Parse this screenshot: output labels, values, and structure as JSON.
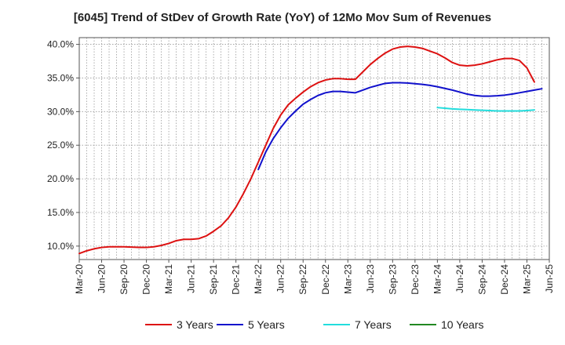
{
  "chart_data": {
    "type": "line",
    "title": "[6045]  Trend of StDev of Growth Rate (YoY) of 12Mo Mov Sum of Revenues",
    "xlabel": "",
    "ylabel": "",
    "ylim": [
      8.0,
      41.0
    ],
    "yticks": [
      10,
      15,
      20,
      25,
      30,
      35,
      40
    ],
    "ytick_labels": [
      "10.0%",
      "15.0%",
      "20.0%",
      "25.0%",
      "30.0%",
      "35.0%",
      "40.0%"
    ],
    "x_start": "Mar-20",
    "x_end": "Jun-25",
    "x_tick_labels": [
      "Mar-20",
      "Jun-20",
      "Sep-20",
      "Dec-20",
      "Mar-21",
      "Jun-21",
      "Sep-21",
      "Dec-21",
      "Mar-22",
      "Jun-22",
      "Sep-22",
      "Dec-22",
      "Mar-23",
      "Jun-23",
      "Sep-23",
      "Dec-23",
      "Mar-24",
      "Jun-24",
      "Sep-24",
      "Dec-24",
      "Mar-25",
      "Jun-25"
    ],
    "grid": true,
    "legend_position": "bottom",
    "series": [
      {
        "name": "3 Years",
        "color": "#dd1111",
        "start_month_index": 0,
        "values": [
          8.9,
          9.3,
          9.6,
          9.8,
          9.9,
          9.9,
          9.9,
          9.85,
          9.8,
          9.8,
          9.9,
          10.1,
          10.4,
          10.8,
          11.0,
          11.0,
          11.1,
          11.5,
          12.2,
          13.0,
          14.2,
          15.8,
          17.8,
          20.0,
          22.5,
          25.0,
          27.5,
          29.5,
          31.0,
          32.0,
          32.9,
          33.7,
          34.3,
          34.7,
          34.9,
          34.9,
          34.8,
          34.8,
          35.9,
          37.0,
          37.9,
          38.7,
          39.3,
          39.6,
          39.7,
          39.6,
          39.4,
          39.0,
          38.6,
          38.0,
          37.3,
          36.9,
          36.8,
          36.9,
          37.1,
          37.4,
          37.7,
          37.9,
          37.9,
          37.6,
          36.5,
          34.4
        ]
      },
      {
        "name": "5 Years",
        "color": "#1111cc",
        "start_month_index": 24,
        "values": [
          21.4,
          24.0,
          26.0,
          27.6,
          29.0,
          30.1,
          31.1,
          31.8,
          32.4,
          32.8,
          33.0,
          33.0,
          32.9,
          32.8,
          33.2,
          33.6,
          33.9,
          34.2,
          34.3,
          34.3,
          34.25,
          34.15,
          34.05,
          33.9,
          33.7,
          33.45,
          33.2,
          32.9,
          32.6,
          32.4,
          32.3,
          32.3,
          32.35,
          32.45,
          32.6,
          32.8,
          33.0,
          33.2,
          33.4
        ]
      },
      {
        "name": "7 Years",
        "color": "#22dddd",
        "start_month_index": 48,
        "values": [
          30.6,
          30.5,
          30.4,
          30.35,
          30.3,
          30.25,
          30.2,
          30.15,
          30.1,
          30.1,
          30.1,
          30.1,
          30.15,
          30.25
        ]
      },
      {
        "name": "10 Years",
        "color": "#228822",
        "start_month_index": 0,
        "values": []
      }
    ]
  }
}
